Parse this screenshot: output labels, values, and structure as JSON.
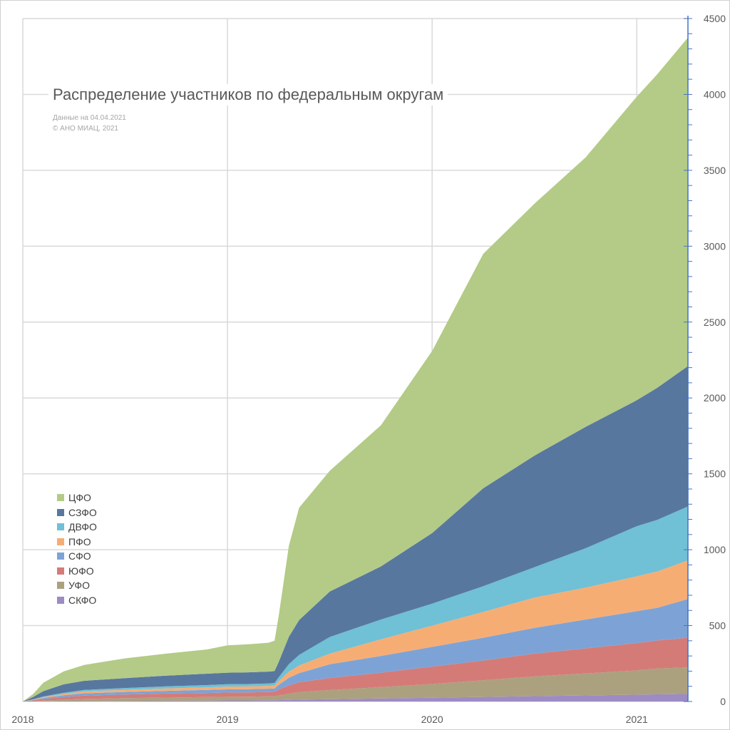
{
  "chart_data": {
    "type": "area",
    "stacked": true,
    "title": "Распределение участников по федеральным округам",
    "subtitle_lines": [
      "Данные на 04.04.2021",
      "© АНО МИАЦ, 2021"
    ],
    "x_unit": "year",
    "xlim": [
      2018.0,
      2021.25
    ],
    "x_ticks": [
      {
        "value": 2018,
        "label": "2018"
      },
      {
        "value": 2019,
        "label": "2019"
      },
      {
        "value": 2020,
        "label": "2020"
      },
      {
        "value": 2021,
        "label": "2021"
      }
    ],
    "ylim": [
      0,
      4500
    ],
    "y_ticks": [
      0,
      500,
      1000,
      1500,
      2000,
      2500,
      3000,
      3500,
      4000,
      4500
    ],
    "y_axis_side": "right",
    "grid": true,
    "legend_position": "left",
    "x": [
      2018.0,
      2018.05,
      2018.1,
      2018.2,
      2018.3,
      2018.5,
      2018.7,
      2018.9,
      2019.0,
      2019.1,
      2019.2,
      2019.23,
      2019.25,
      2019.3,
      2019.35,
      2019.5,
      2019.75,
      2020.0,
      2020.25,
      2020.5,
      2020.75,
      2021.0,
      2021.1,
      2021.25
    ],
    "series": [
      {
        "name": "СКФО",
        "color": "#9d8bc4",
        "values": [
          0,
          0,
          1,
          2,
          3,
          4,
          5,
          6,
          7,
          7,
          8,
          8,
          9,
          11,
          12,
          15,
          20,
          25,
          30,
          35,
          40,
          45,
          47,
          50
        ]
      },
      {
        "name": "УФО",
        "color": "#aca17f",
        "values": [
          0,
          2,
          5,
          10,
          14,
          18,
          21,
          23,
          24,
          25,
          26,
          27,
          30,
          40,
          50,
          60,
          75,
          90,
          110,
          130,
          145,
          160,
          170,
          175
        ]
      },
      {
        "name": "ЮФО",
        "color": "#d47b78",
        "values": [
          0,
          5,
          10,
          17,
          22,
          24,
          26,
          27,
          28,
          28,
          28,
          29,
          40,
          55,
          65,
          80,
          95,
          115,
          130,
          150,
          165,
          180,
          185,
          195
        ]
      },
      {
        "name": "СФО",
        "color": "#7da3d6",
        "values": [
          0,
          3,
          7,
          12,
          15,
          17,
          18,
          20,
          21,
          21,
          22,
          22,
          30,
          50,
          60,
          90,
          110,
          130,
          150,
          170,
          190,
          210,
          215,
          255
        ]
      },
      {
        "name": "ПФО",
        "color": "#f6ad74",
        "values": [
          0,
          2,
          5,
          9,
          12,
          14,
          16,
          17,
          18,
          18,
          19,
          19,
          25,
          40,
          50,
          70,
          110,
          140,
          170,
          200,
          210,
          230,
          240,
          255
        ]
      },
      {
        "name": "ДВФО",
        "color": "#70c0d6",
        "values": [
          0,
          2,
          5,
          8,
          10,
          12,
          14,
          15,
          16,
          16,
          16,
          17,
          25,
          50,
          70,
          110,
          130,
          145,
          170,
          200,
          260,
          330,
          340,
          355
        ]
      },
      {
        "name": "СЗФО",
        "color": "#58779e",
        "values": [
          0,
          15,
          35,
          55,
          60,
          65,
          70,
          75,
          76,
          77,
          78,
          78,
          100,
          180,
          230,
          300,
          350,
          465,
          645,
          735,
          800,
          830,
          870,
          925
        ]
      },
      {
        "name": "ЦФО",
        "color": "#b3cb86",
        "values": [
          0,
          20,
          55,
          85,
          105,
          130,
          145,
          160,
          180,
          185,
          190,
          200,
          300,
          600,
          740,
          795,
          930,
          1200,
          1545,
          1660,
          1775,
          2000,
          2065,
          2165
        ]
      }
    ]
  }
}
